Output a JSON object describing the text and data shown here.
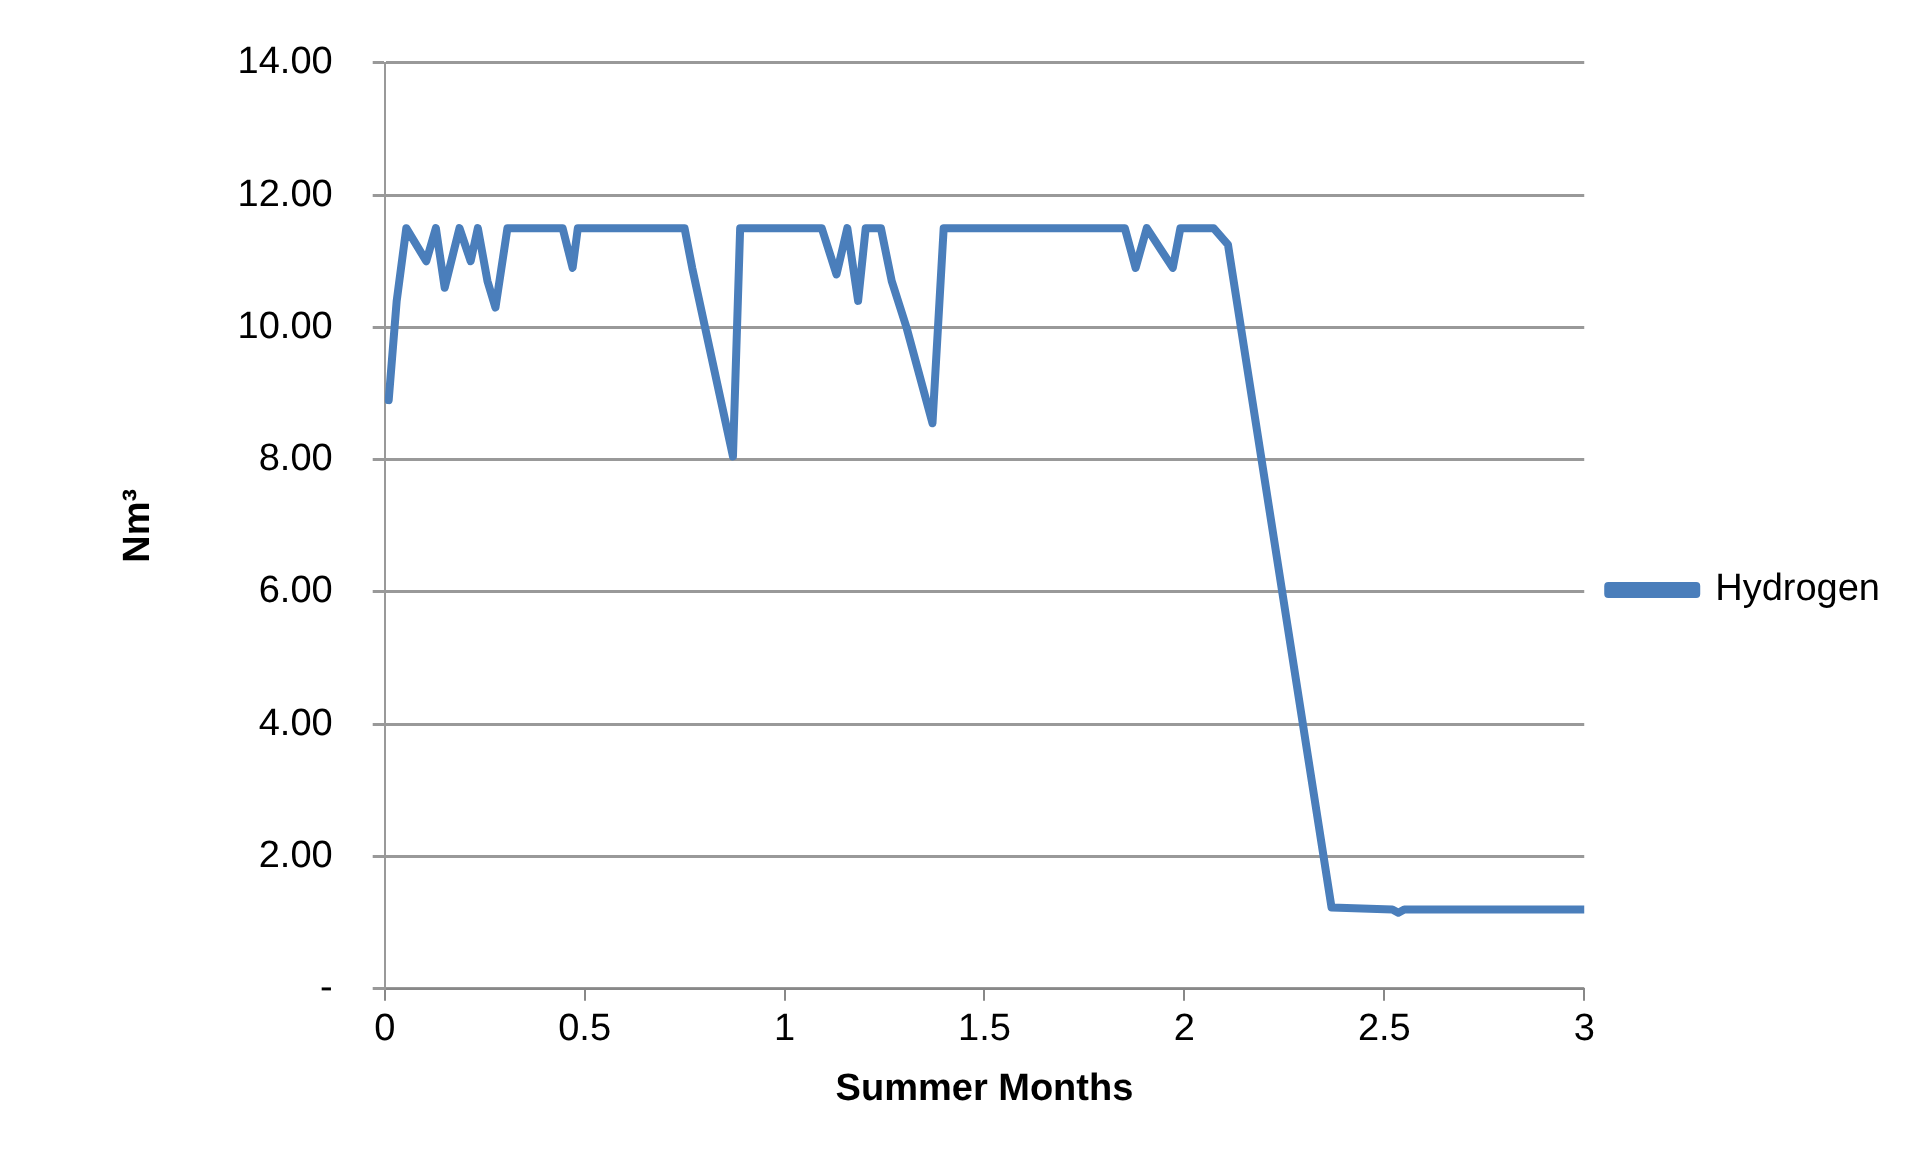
{
  "chart_data": {
    "type": "line",
    "xlabel": "Summer Months",
    "ylabel": "Nm³",
    "xlim": [
      0,
      3
    ],
    "xticks": [
      0,
      0.5,
      1,
      1.5,
      2,
      2.5,
      3
    ],
    "ylim": [
      0,
      14
    ],
    "yticks": [
      {
        "value": 0,
        "label": "-"
      },
      {
        "value": 2,
        "label": "2.00"
      },
      {
        "value": 4,
        "label": "4.00"
      },
      {
        "value": 6,
        "label": "6.00"
      },
      {
        "value": 8,
        "label": "8.00"
      },
      {
        "value": 10,
        "label": "10.00"
      },
      {
        "value": 12,
        "label": "12.00"
      },
      {
        "value": 14,
        "label": "14.00"
      }
    ],
    "grid": "y",
    "legend": "right",
    "marker": "none",
    "line_style": "solid",
    "series": [
      {
        "name": "Hydrogen",
        "color": "#4a7ebb",
        "x": [
          0.01,
          0.03,
          0.054,
          0.104,
          0.128,
          0.15,
          0.187,
          0.215,
          0.233,
          0.257,
          0.277,
          0.307,
          0.445,
          0.47,
          0.483,
          0.75,
          0.769,
          0.871,
          0.889,
          1.093,
          1.13,
          1.157,
          1.184,
          1.203,
          1.241,
          1.268,
          1.305,
          1.37,
          1.398,
          1.851,
          1.878,
          1.906,
          1.971,
          1.99,
          2.073,
          2.109,
          2.368,
          2.52,
          2.535,
          2.55,
          3
        ],
        "values": [
          8.9,
          10.4,
          11.5,
          11.0,
          11.5,
          10.6,
          11.5,
          11.0,
          11.5,
          10.7,
          10.3,
          11.5,
          11.5,
          10.9,
          11.5,
          11.5,
          10.9,
          8.05,
          11.5,
          11.5,
          10.8,
          11.5,
          10.4,
          11.5,
          11.5,
          10.7,
          10.0,
          8.55,
          11.5,
          11.5,
          10.9,
          11.5,
          10.9,
          11.5,
          11.5,
          11.25,
          1.23,
          1.2,
          1.15,
          1.2,
          1.2
        ]
      }
    ]
  }
}
